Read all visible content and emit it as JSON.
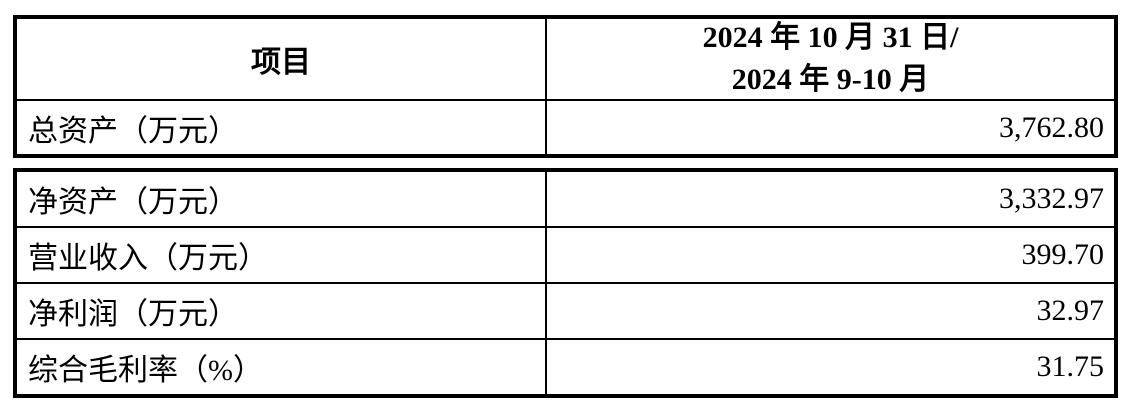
{
  "page": {
    "background": "#ffffff",
    "text_color": "#000000",
    "border_color": "#000000"
  },
  "table_top": {
    "header": {
      "item_label": "项目",
      "period_line1": "2024 年 10 月 31 日/",
      "period_line2": "2024 年 9-10 月"
    },
    "rows": [
      {
        "label": "总资产（万元）",
        "value": "3,762.80"
      }
    ]
  },
  "table_bottom": {
    "rows": [
      {
        "label": "净资产（万元）",
        "value": "3,332.97"
      },
      {
        "label": "营业收入（万元）",
        "value": "399.70"
      },
      {
        "label": "净利润（万元）",
        "value": "32.97"
      },
      {
        "label": "综合毛利率（%）",
        "value": "31.75"
      }
    ]
  }
}
